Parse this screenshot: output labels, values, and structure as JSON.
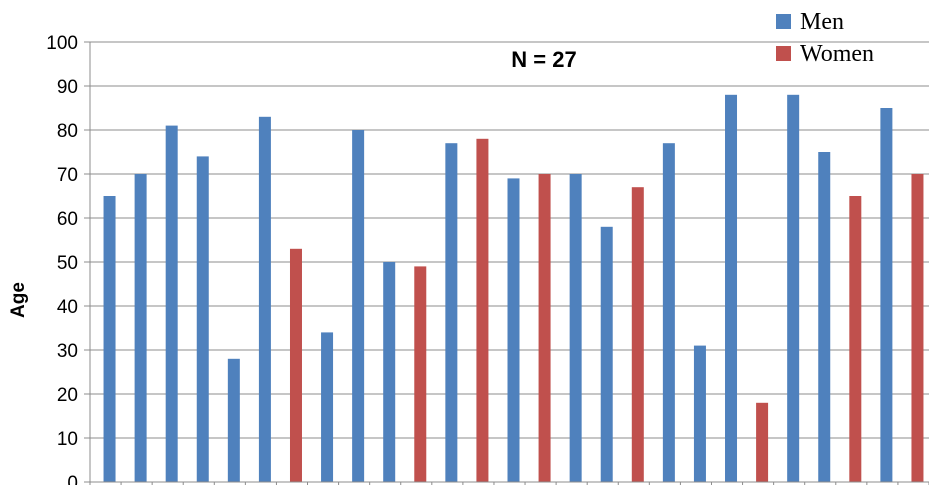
{
  "chart_data": {
    "type": "bar",
    "title": "",
    "annotation": "N = 27",
    "xlabel": "",
    "ylabel": "Age",
    "ylim": [
      0,
      100
    ],
    "yticks": [
      0,
      10,
      20,
      30,
      40,
      50,
      60,
      70,
      80,
      90,
      100
    ],
    "grid": true,
    "legend_position": "top-right",
    "series": [
      {
        "name": "Men",
        "color": "#4f81bd"
      },
      {
        "name": "Women",
        "color": "#c0504d"
      }
    ],
    "bars": [
      {
        "value": 65,
        "series": "Men"
      },
      {
        "value": 70,
        "series": "Men"
      },
      {
        "value": 81,
        "series": "Men"
      },
      {
        "value": 74,
        "series": "Men"
      },
      {
        "value": 28,
        "series": "Men"
      },
      {
        "value": 83,
        "series": "Men"
      },
      {
        "value": 53,
        "series": "Women"
      },
      {
        "value": 34,
        "series": "Men"
      },
      {
        "value": 80,
        "series": "Men"
      },
      {
        "value": 50,
        "series": "Men"
      },
      {
        "value": 49,
        "series": "Women"
      },
      {
        "value": 77,
        "series": "Men"
      },
      {
        "value": 78,
        "series": "Women"
      },
      {
        "value": 69,
        "series": "Men"
      },
      {
        "value": 70,
        "series": "Women"
      },
      {
        "value": 70,
        "series": "Men"
      },
      {
        "value": 58,
        "series": "Men"
      },
      {
        "value": 67,
        "series": "Women"
      },
      {
        "value": 77,
        "series": "Men"
      },
      {
        "value": 31,
        "series": "Men"
      },
      {
        "value": 88,
        "series": "Men"
      },
      {
        "value": 18,
        "series": "Women"
      },
      {
        "value": 88,
        "series": "Men"
      },
      {
        "value": 75,
        "series": "Men"
      },
      {
        "value": 65,
        "series": "Women"
      },
      {
        "value": 85,
        "series": "Men"
      },
      {
        "value": 70,
        "series": "Women"
      }
    ]
  }
}
